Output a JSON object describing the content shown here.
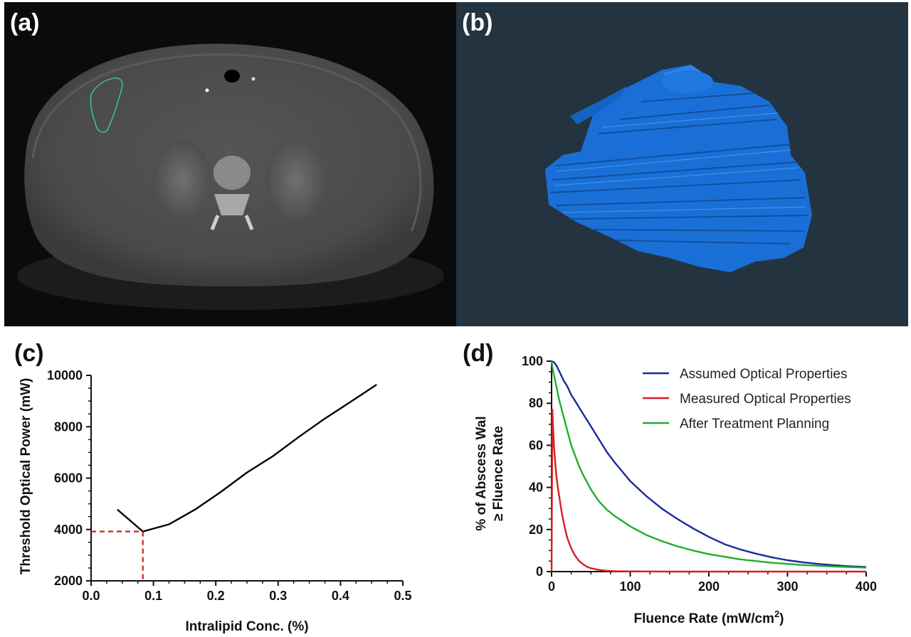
{
  "panels": {
    "a": {
      "label": "(a)"
    },
    "b": {
      "label": "(b)"
    },
    "c": {
      "label": "(c)"
    },
    "d": {
      "label": "(d)"
    }
  },
  "colors": {
    "ct_background": "#0b0b0b",
    "render_background": "#233340",
    "voxel_blue": "#1a6fd6",
    "contour": "#39c6b8",
    "threshold_line": "#000000",
    "dashed_marker": "#cc1f1f",
    "assumed": "#1a2a9c",
    "measured": "#d81e1e",
    "after": "#1fae2a"
  },
  "chart_data": [
    {
      "panel": "c",
      "type": "line",
      "xlabel": "Intralipid Conc. (%)",
      "ylabel": "Threshold Optical Power (mW)",
      "xlim": [
        0.0,
        0.5
      ],
      "ylim": [
        2000,
        10000
      ],
      "xticks": [
        "0.0",
        "0.1",
        "0.2",
        "0.3",
        "0.4",
        "0.5"
      ],
      "yticks": [
        "2000",
        "4000",
        "6000",
        "8000",
        "10000"
      ],
      "grid": false,
      "series": [
        {
          "x": [
            0.042,
            0.083,
            0.125,
            0.167,
            0.208,
            0.25,
            0.292,
            0.333,
            0.375,
            0.417,
            0.458
          ],
          "y": [
            4780,
            3920,
            4200,
            4780,
            5460,
            6220,
            6860,
            7600,
            8320,
            8980,
            9640
          ]
        }
      ],
      "marker": {
        "x": 0.083,
        "y": 3920,
        "style": "dashed"
      }
    },
    {
      "panel": "d",
      "type": "line",
      "xlabel": "Fluence Rate (mW/cm",
      "xlabel_sup": "2",
      "xlabel_close": ")",
      "ylabel_line1": "% of Abscess Wal",
      "ylabel_line2": "≥ Fluence Rate",
      "xlim": [
        0,
        400
      ],
      "ylim": [
        0,
        100
      ],
      "xticks": [
        "0",
        "100",
        "200",
        "300",
        "400"
      ],
      "yticks": [
        "0",
        "20",
        "40",
        "60",
        "80",
        "100"
      ],
      "grid": false,
      "legend_position": "top-right",
      "series": [
        {
          "name": "Assumed Optical Properties",
          "x": [
            0,
            3,
            6,
            10,
            15,
            20,
            25,
            30,
            40,
            50,
            60,
            70,
            80,
            90,
            100,
            120,
            140,
            160,
            180,
            200,
            220,
            240,
            260,
            280,
            300,
            320,
            340,
            360,
            380,
            400
          ],
          "y": [
            100,
            99.5,
            98,
            95,
            91,
            88,
            84,
            81,
            75,
            69,
            63,
            57,
            52,
            47.5,
            43,
            36,
            30,
            25,
            20.5,
            16.5,
            13,
            10.5,
            8.5,
            6.8,
            5.4,
            4.4,
            3.6,
            3,
            2.5,
            2.2
          ]
        },
        {
          "name": "Measured Optical Properties",
          "x": [
            0,
            1,
            2,
            3,
            4,
            5,
            6,
            8,
            10,
            12,
            15,
            18,
            20,
            25,
            30,
            35,
            40,
            45,
            50,
            60,
            70,
            80,
            100,
            150,
            200,
            300,
            400
          ],
          "y": [
            0,
            77,
            68,
            60,
            55,
            50,
            46,
            40,
            35,
            30,
            24,
            19,
            16,
            11,
            7.5,
            5,
            3.5,
            2.3,
            1.6,
            0.8,
            0.4,
            0.2,
            0.1,
            0,
            0,
            0,
            0
          ]
        },
        {
          "name": "After Treatment Planning",
          "x": [
            0,
            2,
            5,
            10,
            15,
            20,
            25,
            30,
            35,
            40,
            50,
            60,
            70,
            80,
            90,
            100,
            120,
            140,
            160,
            180,
            200,
            240,
            280,
            320,
            360,
            400
          ],
          "y": [
            100,
            95,
            90,
            81,
            74,
            67,
            60,
            55,
            50,
            46,
            39,
            33.5,
            29.5,
            26.5,
            24,
            21.5,
            17.5,
            14.5,
            12,
            10,
            8.3,
            5.8,
            4.2,
            3.1,
            2.4,
            1.9
          ]
        }
      ]
    }
  ]
}
